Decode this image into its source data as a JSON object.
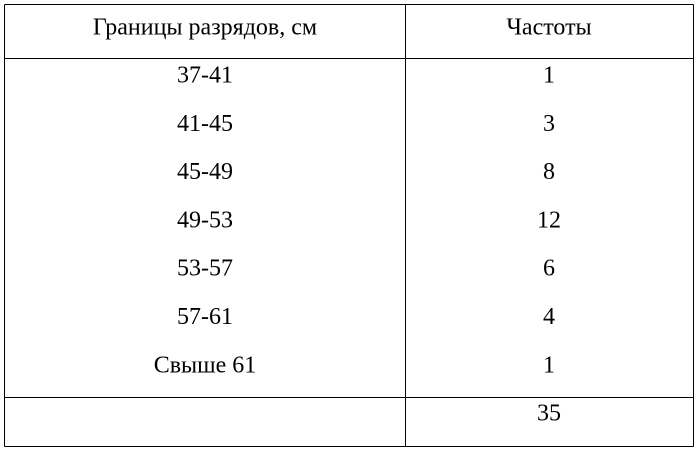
{
  "table": {
    "header": [
      "Границы разрядов, см",
      "Частоты"
    ],
    "rows": [
      [
        "37-41",
        1
      ],
      [
        "41-45",
        3
      ],
      [
        "45-49",
        8
      ],
      [
        "49-53",
        12
      ],
      [
        "53-57",
        6
      ],
      [
        "57-61",
        4
      ],
      [
        "Свыше 61",
        1
      ]
    ],
    "total": 35
  }
}
